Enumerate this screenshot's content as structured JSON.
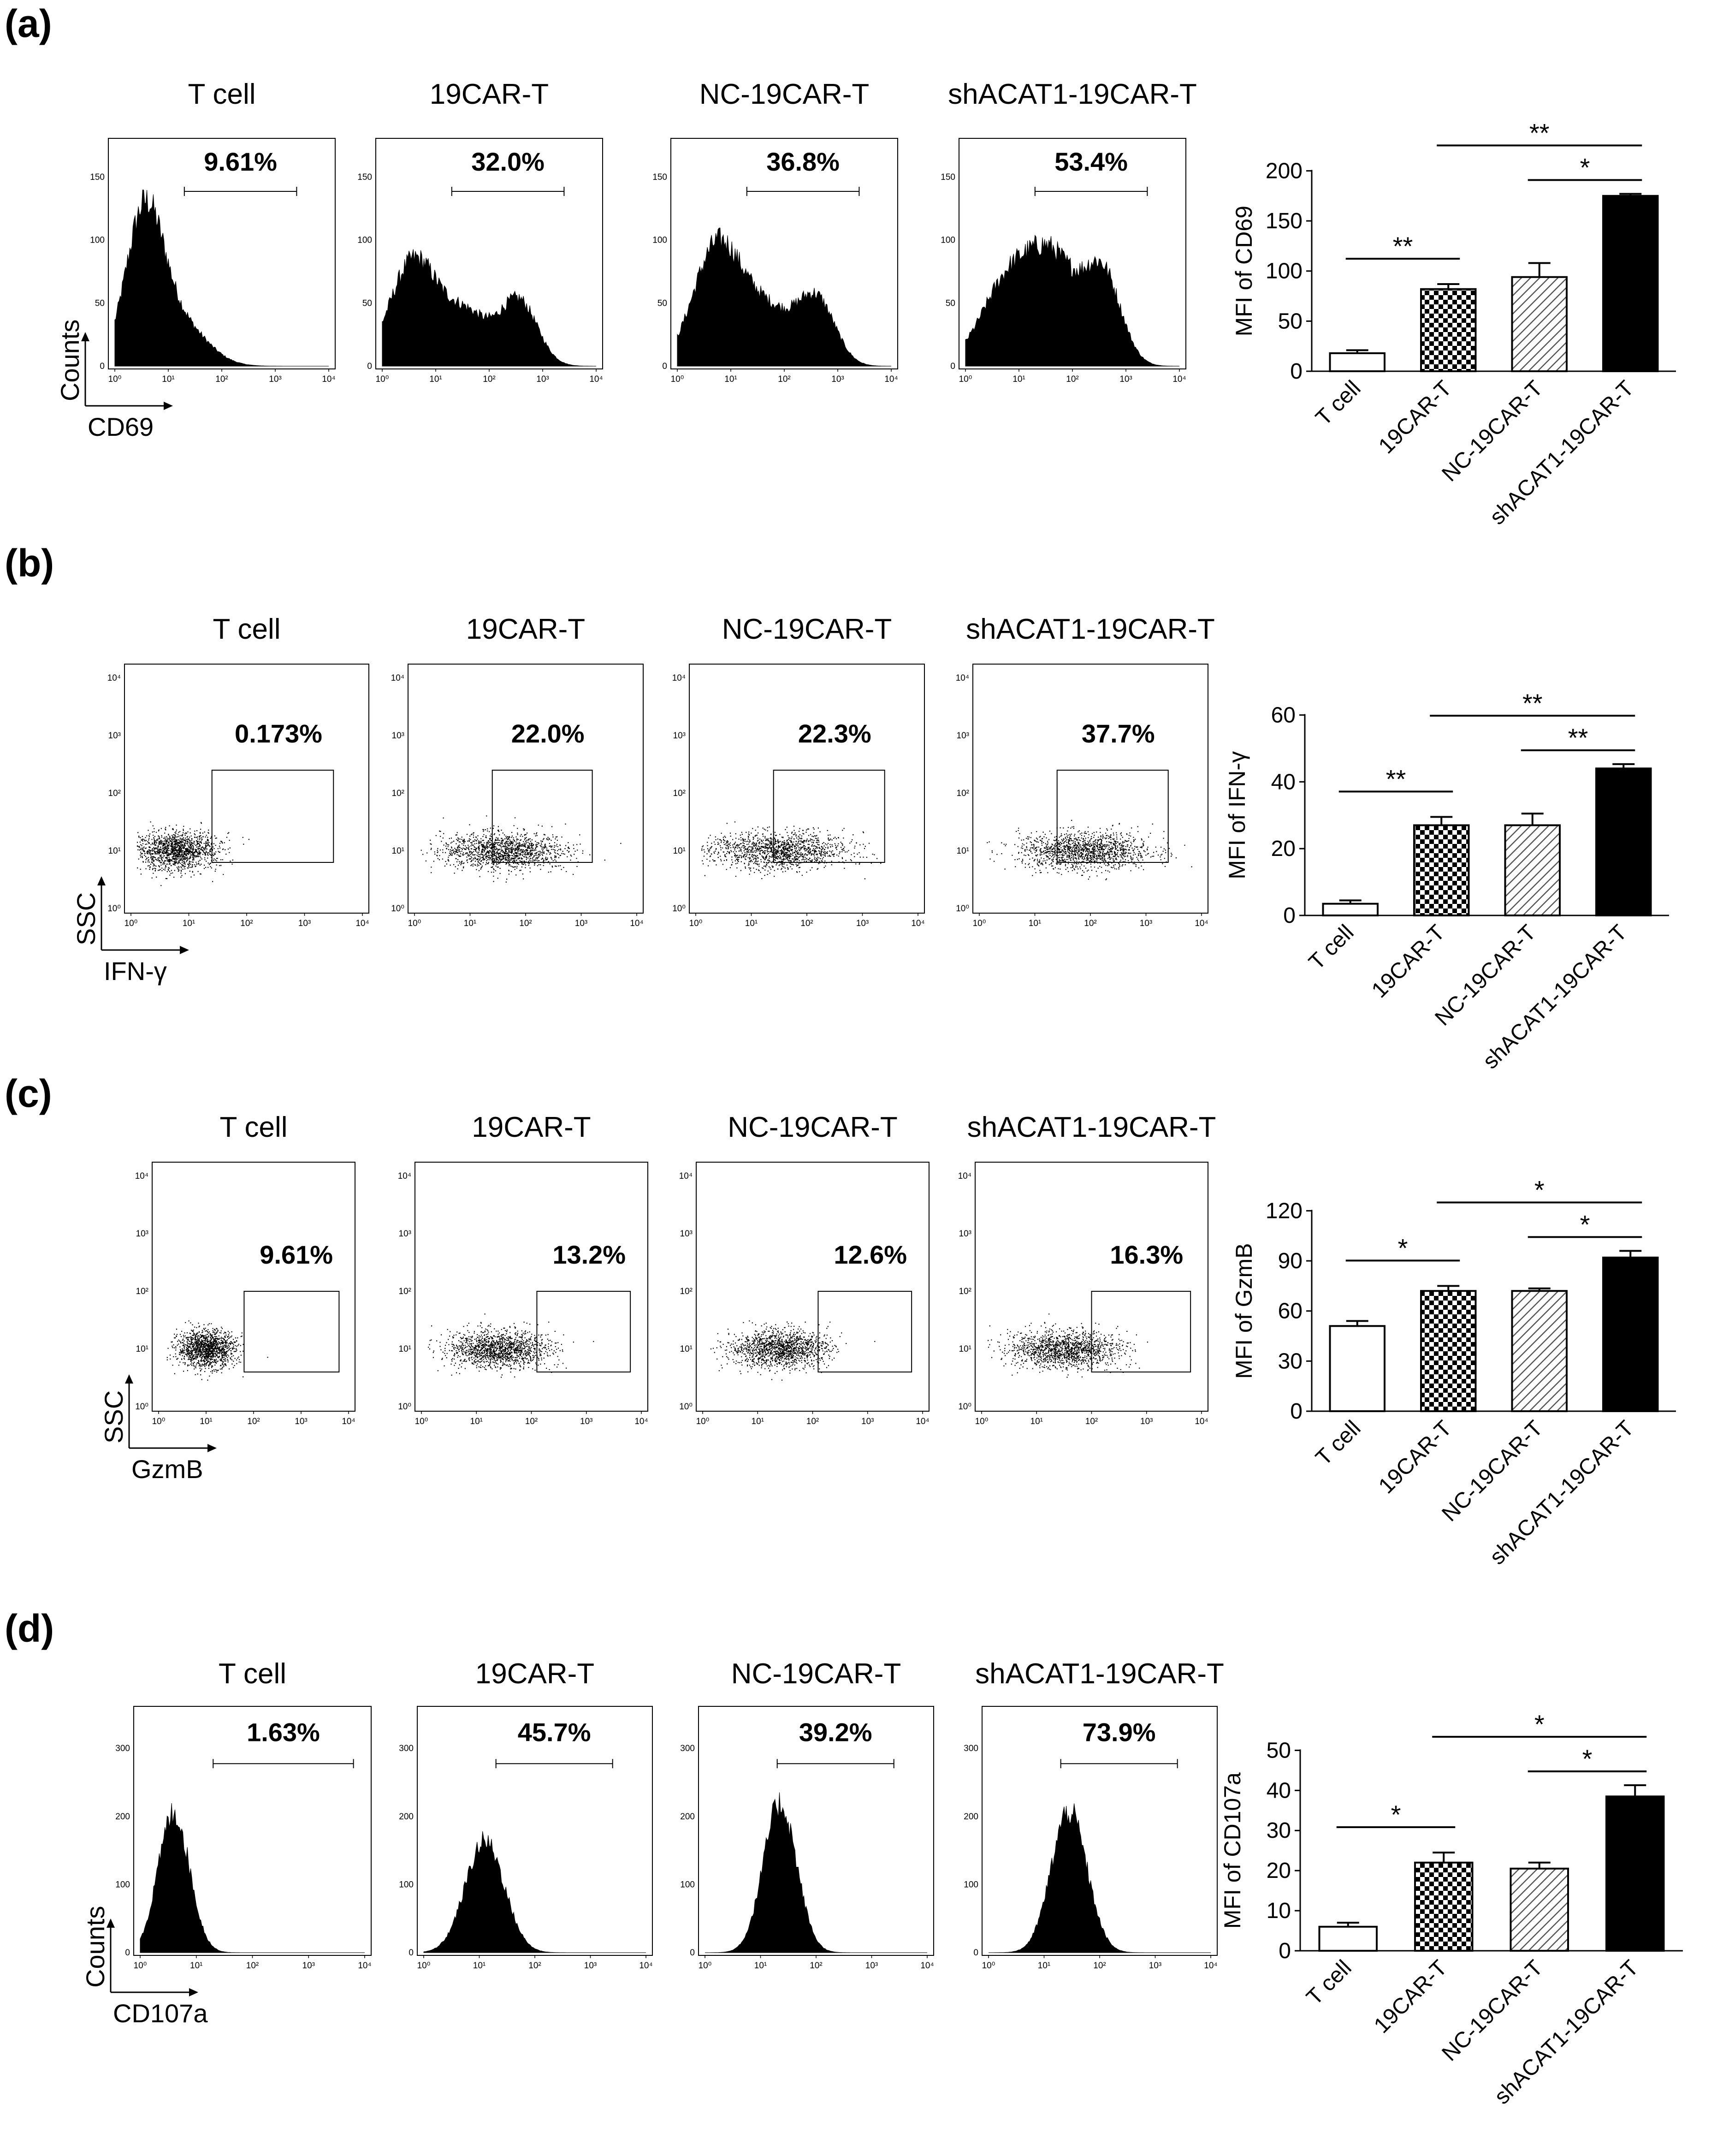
{
  "panels": [
    {
      "label": "(a)",
      "plot": "histogram",
      "samples": [
        "T cell",
        "19CAR-T",
        "NC-19CAR-T",
        "shACAT1-19CAR-T"
      ],
      "percents": [
        "9.61%",
        "32.0%",
        "36.8%",
        "53.4%"
      ],
      "x_axis_name": "CD69",
      "y_axis_name": "Counts",
      "x_ticks": [
        "10⁰",
        "10¹",
        "10²",
        "10³",
        "10⁴"
      ],
      "y_ticks": [
        "0",
        "50",
        "100",
        "150"
      ]
    },
    {
      "label": "(b)",
      "plot": "scatter",
      "samples": [
        "T cell",
        "19CAR-T",
        "NC-19CAR-T",
        "shACAT1-19CAR-T"
      ],
      "percents": [
        "0.173%",
        "22.0%",
        "22.3%",
        "37.7%"
      ],
      "x_axis_name": "IFN-γ",
      "y_axis_name": "SSC",
      "x_ticks": [
        "10⁰",
        "10¹",
        "10²",
        "10³",
        "10⁴"
      ],
      "y_ticks": [
        "10⁰",
        "10¹",
        "10²",
        "10³",
        "10⁴"
      ]
    },
    {
      "label": "(c)",
      "plot": "scatter",
      "samples": [
        "T cell",
        "19CAR-T",
        "NC-19CAR-T",
        "shACAT1-19CAR-T"
      ],
      "percents": [
        "9.61%",
        "13.2%",
        "12.6%",
        "16.3%"
      ],
      "x_axis_name": "GzmB",
      "y_axis_name": "SSC",
      "x_ticks": [
        "10⁰",
        "10¹",
        "10²",
        "10³",
        "10⁴"
      ],
      "y_ticks": [
        "10⁰",
        "10¹",
        "10²",
        "10³",
        "10⁴"
      ]
    },
    {
      "label": "(d)",
      "plot": "histogram",
      "samples": [
        "T cell",
        "19CAR-T",
        "NC-19CAR-T",
        "shACAT1-19CAR-T"
      ],
      "percents": [
        "1.63%",
        "45.7%",
        "39.2%",
        "73.9%"
      ],
      "x_axis_name": "CD107a",
      "y_axis_name": "Counts",
      "x_ticks": [
        "10⁰",
        "10¹",
        "10²",
        "10³",
        "10⁴"
      ],
      "y_ticks": [
        "0",
        "100",
        "200",
        "300"
      ]
    }
  ],
  "colors": {
    "ink": "#000000",
    "bar_outline": "#000000",
    "bar_fill_tcell": "#ffffff",
    "bar_fill_shacat1": "#000000",
    "bar_pattern_19car": "checkerboard",
    "bar_pattern_nc19car": "diagonal-hatch"
  },
  "chart_data": [
    {
      "type": "bar",
      "panel": "(a)",
      "ylabel": "MFI of CD69",
      "categories": [
        "T cell",
        "19CAR-T",
        "NC-19CAR-T",
        "shACAT1-19CAR-T"
      ],
      "values": [
        18,
        82,
        94,
        175
      ],
      "errors": [
        3,
        5,
        14,
        2
      ],
      "ylim": [
        0,
        200
      ],
      "yticks": [
        0,
        50,
        100,
        150,
        200
      ],
      "significance": [
        {
          "from": 0,
          "to": 1,
          "label": "**"
        },
        {
          "from": 2,
          "to": 3,
          "label": "*"
        },
        {
          "from": 1,
          "to": 3,
          "label": "**"
        }
      ]
    },
    {
      "type": "bar",
      "panel": "(b)",
      "ylabel": "MFI of IFN-γ",
      "categories": [
        "T cell",
        "19CAR-T",
        "NC-19CAR-T",
        "shACAT1-19CAR-T"
      ],
      "values": [
        3.5,
        27,
        27,
        44
      ],
      "errors": [
        1,
        2.5,
        3.5,
        1.3
      ],
      "ylim": [
        0,
        60
      ],
      "yticks": [
        0,
        20,
        40,
        60
      ],
      "significance": [
        {
          "from": 0,
          "to": 1,
          "label": "**"
        },
        {
          "from": 2,
          "to": 3,
          "label": "**"
        },
        {
          "from": 1,
          "to": 3,
          "label": "**"
        }
      ]
    },
    {
      "type": "bar",
      "panel": "(c)",
      "ylabel": "MFI of GzmB",
      "categories": [
        "T cell",
        "19CAR-T",
        "NC-19CAR-T",
        "shACAT1-19CAR-T"
      ],
      "values": [
        51,
        72,
        72,
        92
      ],
      "errors": [
        3,
        3,
        1.5,
        4
      ],
      "ylim": [
        0,
        120
      ],
      "yticks": [
        0,
        30,
        60,
        90,
        120
      ],
      "significance": [
        {
          "from": 0,
          "to": 1,
          "label": "*"
        },
        {
          "from": 2,
          "to": 3,
          "label": "*"
        },
        {
          "from": 1,
          "to": 3,
          "label": "*"
        }
      ]
    },
    {
      "type": "bar",
      "panel": "(d)",
      "ylabel": "MFI of CD107a",
      "categories": [
        "T cell",
        "19CAR-T",
        "NC-19CAR-T",
        "shACAT1-19CAR-T"
      ],
      "values": [
        6,
        22,
        20.5,
        38.5
      ],
      "errors": [
        1,
        2.5,
        1.5,
        2.8
      ],
      "ylim": [
        0,
        50
      ],
      "yticks": [
        0,
        10,
        20,
        30,
        40,
        50
      ],
      "significance": [
        {
          "from": 0,
          "to": 1,
          "label": "*"
        },
        {
          "from": 2,
          "to": 3,
          "label": "*"
        },
        {
          "from": 1,
          "to": 3,
          "label": "*"
        }
      ]
    }
  ]
}
